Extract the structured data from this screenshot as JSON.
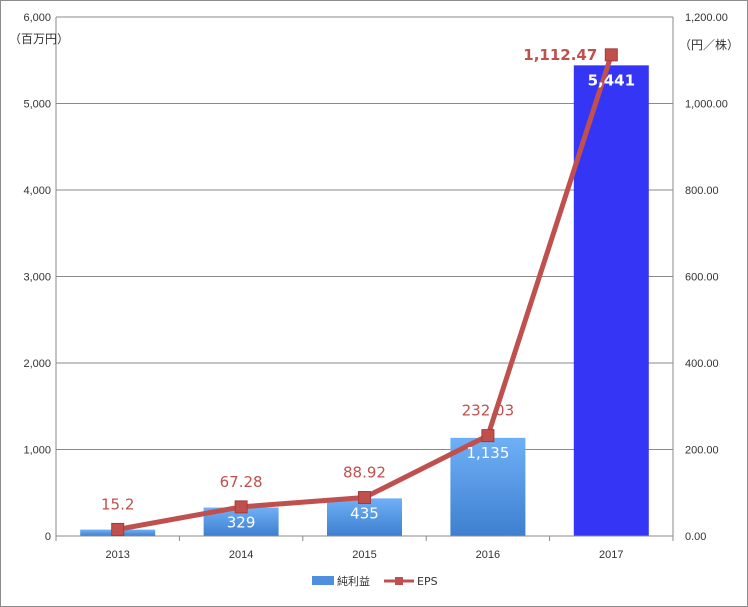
{
  "chart_data": {
    "type": "bar",
    "categories": [
      "2013",
      "2014",
      "2015",
      "2016",
      "2017"
    ],
    "series": [
      {
        "name": "純利益",
        "type": "bar",
        "axis": "left",
        "values": [
          74,
          329,
          435,
          1135,
          5441
        ],
        "labels": [
          "",
          "329",
          "435",
          "1,135",
          "5,441"
        ],
        "color": "#4f8fe0",
        "highlight_color": "#3535f5"
      },
      {
        "name": "EPS",
        "type": "line",
        "axis": "right",
        "values": [
          15.2,
          67.28,
          88.92,
          232.03,
          1112.47
        ],
        "labels": [
          "15.2",
          "67.28",
          "88.92",
          "232.03",
          "1,112.47"
        ],
        "color": "#c0504d"
      }
    ],
    "y_left": {
      "unit": "（百万円）",
      "ylim": [
        0,
        6000
      ],
      "ticks": [
        "0",
        "1,000",
        "2,000",
        "3,000",
        "4,000",
        "5,000",
        "6,000"
      ]
    },
    "y_right": {
      "unit": "（円／株）",
      "ylim": [
        0,
        1200
      ],
      "ticks": [
        "0.00",
        "200.00",
        "400.00",
        "600.00",
        "800.00",
        "1,000.00",
        "1,200.00"
      ]
    },
    "grid": true,
    "legend": "bottom-center"
  }
}
